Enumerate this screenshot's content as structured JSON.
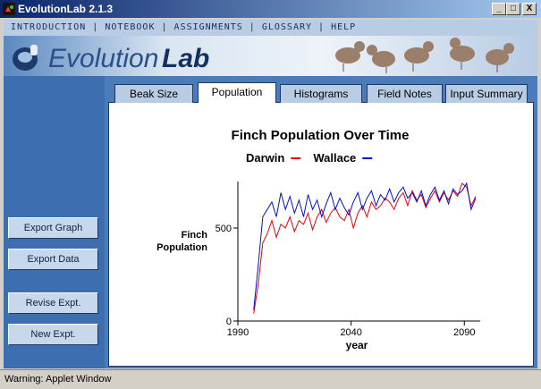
{
  "window": {
    "title": "EvolutionLab 2.1.3"
  },
  "menu": [
    "INTRODUCTION",
    "NOTEBOOK",
    "ASSIGNMENTS",
    "GLOSSARY",
    "HELP"
  ],
  "banner": {
    "logo_light": "Evolution",
    "logo_bold": "Lab"
  },
  "tabs": [
    "Beak Size",
    "Population",
    "Histograms",
    "Field Notes",
    "Input Summary"
  ],
  "active_tab": "Population",
  "buttons": [
    "Export Graph",
    "Export Data",
    "Revise Expt.",
    "New Expt."
  ],
  "status": "Warning: Applet Window",
  "chart_data": {
    "type": "line",
    "title": "Finch Population Over Time",
    "x_label": "year",
    "y_label": "Finch Population",
    "x": [
      1997,
      1999,
      2001,
      2003,
      2005,
      2007,
      2009,
      2011,
      2013,
      2015,
      2017,
      2019,
      2021,
      2023,
      2025,
      2027,
      2029,
      2031,
      2033,
      2035,
      2037,
      2039,
      2041,
      2043,
      2045,
      2047,
      2049,
      2051,
      2053,
      2055,
      2057,
      2059,
      2061,
      2063,
      2065,
      2067,
      2069,
      2071,
      2073,
      2075,
      2077,
      2079,
      2081,
      2083,
      2085,
      2087,
      2089,
      2091,
      2093,
      2095
    ],
    "series": [
      {
        "name": "Darwin",
        "color": "#e8000b",
        "values": [
          40,
          200,
          420,
          470,
          540,
          450,
          520,
          500,
          560,
          480,
          540,
          520,
          580,
          490,
          560,
          600,
          530,
          580,
          610,
          560,
          540,
          600,
          500,
          580,
          620,
          560,
          640,
          600,
          620,
          660,
          640,
          600,
          660,
          690,
          620,
          700,
          650,
          680,
          610,
          660,
          700,
          640,
          690,
          650,
          700,
          670,
          740,
          720,
          620,
          670
        ]
      },
      {
        "name": "Wallace",
        "color": "#0010d0",
        "values": [
          60,
          300,
          560,
          600,
          640,
          560,
          690,
          600,
          670,
          580,
          650,
          560,
          680,
          600,
          650,
          560,
          630,
          690,
          600,
          660,
          610,
          570,
          640,
          690,
          600,
          660,
          700,
          620,
          680,
          650,
          710,
          640,
          690,
          720,
          660,
          690,
          640,
          700,
          620,
          680,
          720,
          650,
          700,
          630,
          710,
          680,
          700,
          740,
          600,
          660
        ]
      }
    ],
    "xlim": [
      1990,
      2097
    ],
    "ylim": [
      0,
      750
    ],
    "xticks": [
      1990,
      2040,
      2090
    ],
    "yticks": [
      0,
      500
    ]
  }
}
